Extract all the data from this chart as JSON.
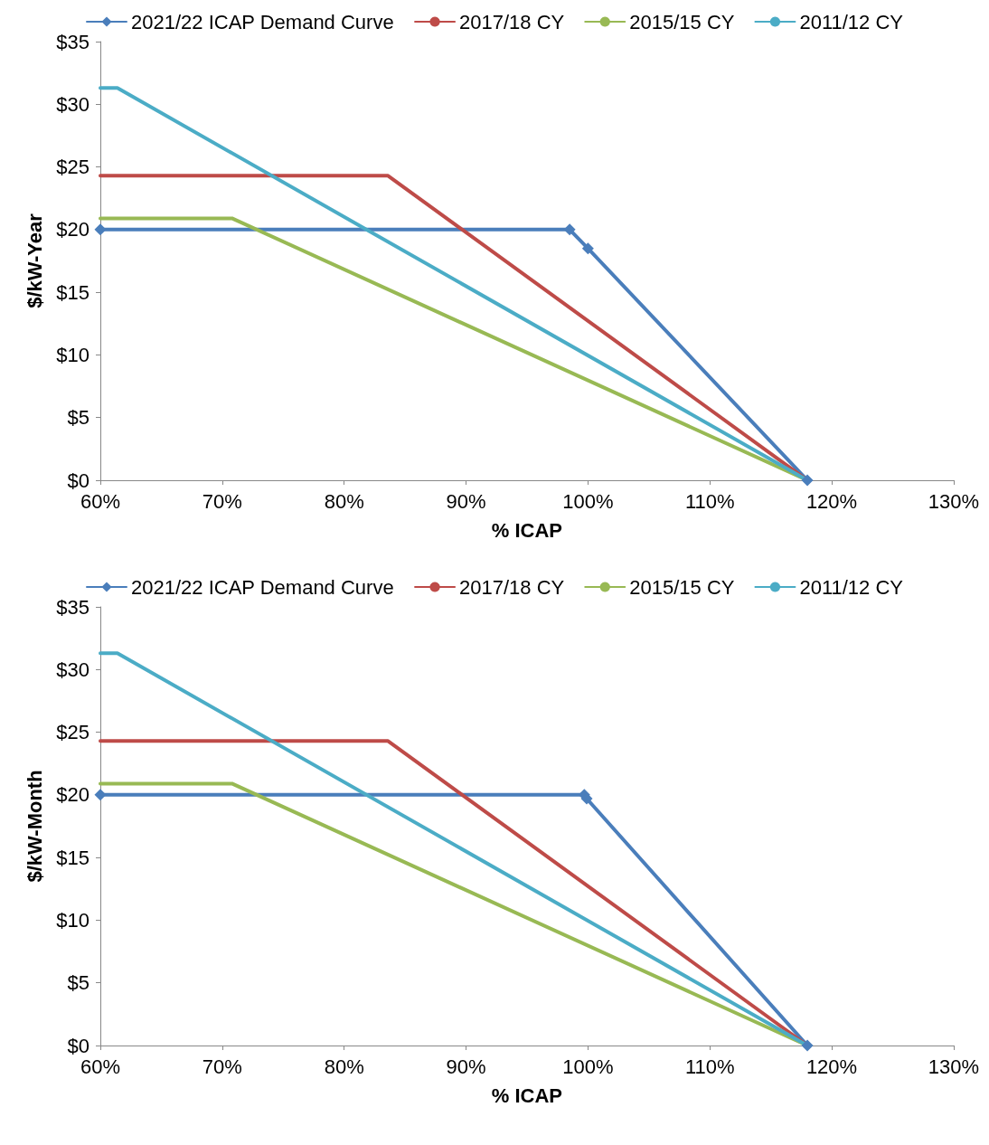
{
  "chart_data": [
    {
      "type": "line",
      "xlabel": "% ICAP",
      "ylabel": "$/kW-Year",
      "legend": "top",
      "grid": false,
      "line_style": "solid",
      "xlim": [
        60,
        130
      ],
      "ylim": [
        0,
        35
      ],
      "xticks": [
        {
          "value": 60,
          "label": "60%"
        },
        {
          "value": 70,
          "label": "70%"
        },
        {
          "value": 80,
          "label": "80%"
        },
        {
          "value": 90,
          "label": "90%"
        },
        {
          "value": 100,
          "label": "100%"
        },
        {
          "value": 110,
          "label": "110%"
        },
        {
          "value": 120,
          "label": "120%"
        },
        {
          "value": 130,
          "label": "130%"
        }
      ],
      "yticks": [
        {
          "value": 0,
          "label": "$0"
        },
        {
          "value": 5,
          "label": "$5"
        },
        {
          "value": 10,
          "label": "$10"
        },
        {
          "value": 15,
          "label": "$15"
        },
        {
          "value": 20,
          "label": "$20"
        },
        {
          "value": 25,
          "label": "$25"
        },
        {
          "value": 30,
          "label": "$30"
        },
        {
          "value": 35,
          "label": "$35"
        }
      ],
      "series": [
        {
          "name": "2021/22 ICAP Demand Curve",
          "color": "#4a7ebb",
          "marker": "diamond",
          "x": [
            60,
            98.5,
            100,
            118
          ],
          "values": [
            20,
            20,
            18.5,
            0
          ]
        },
        {
          "name": "2017/18 CY",
          "color": "#be4b48",
          "marker": "none",
          "x": [
            60,
            83.6,
            118
          ],
          "values": [
            24.3,
            24.3,
            0
          ]
        },
        {
          "name": "2015/15 CY",
          "color": "#98b954",
          "marker": "none",
          "x": [
            60,
            70.8,
            118
          ],
          "values": [
            20.9,
            20.9,
            0
          ]
        },
        {
          "name": "2011/12 CY",
          "color": "#4bacc6",
          "marker": "none",
          "x": [
            60,
            61.4,
            118
          ],
          "values": [
            31.3,
            31.3,
            0
          ]
        }
      ]
    },
    {
      "type": "line",
      "xlabel": "% ICAP",
      "ylabel": "$/kW-Month",
      "legend": "top",
      "grid": false,
      "line_style": "solid",
      "xlim": [
        60,
        130
      ],
      "ylim": [
        0,
        35
      ],
      "xticks": [
        {
          "value": 60,
          "label": "60%"
        },
        {
          "value": 70,
          "label": "70%"
        },
        {
          "value": 80,
          "label": "80%"
        },
        {
          "value": 90,
          "label": "90%"
        },
        {
          "value": 100,
          "label": "100%"
        },
        {
          "value": 110,
          "label": "110%"
        },
        {
          "value": 120,
          "label": "120%"
        },
        {
          "value": 130,
          "label": "130%"
        }
      ],
      "yticks": [
        {
          "value": 0,
          "label": "$0"
        },
        {
          "value": 5,
          "label": "$5"
        },
        {
          "value": 10,
          "label": "$10"
        },
        {
          "value": 15,
          "label": "$15"
        },
        {
          "value": 20,
          "label": "$20"
        },
        {
          "value": 25,
          "label": "$25"
        },
        {
          "value": 30,
          "label": "$30"
        },
        {
          "value": 35,
          "label": "$35"
        }
      ],
      "series": [
        {
          "name": "2021/22 ICAP Demand Curve",
          "color": "#4a7ebb",
          "marker": "diamond",
          "x": [
            60,
            99.7,
            99.9,
            118
          ],
          "values": [
            20,
            20,
            19.7,
            0
          ]
        },
        {
          "name": "2017/18 CY",
          "color": "#be4b48",
          "marker": "none",
          "x": [
            60,
            83.6,
            118
          ],
          "values": [
            24.3,
            24.3,
            0
          ]
        },
        {
          "name": "2015/15 CY",
          "color": "#98b954",
          "marker": "none",
          "x": [
            60,
            70.8,
            118
          ],
          "values": [
            20.9,
            20.9,
            0
          ]
        },
        {
          "name": "2011/12 CY",
          "color": "#4bacc6",
          "marker": "none",
          "x": [
            60,
            61.4,
            118
          ],
          "values": [
            31.3,
            31.3,
            0
          ]
        }
      ]
    }
  ]
}
